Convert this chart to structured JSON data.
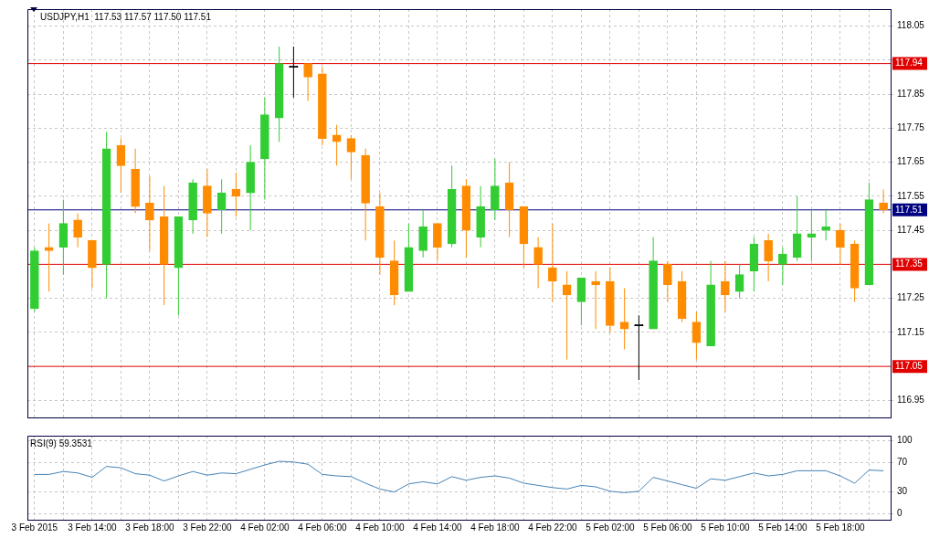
{
  "chart_data": [
    {
      "type": "candlestick",
      "title": "USDJPY,H1  117.53 117.57 117.50 117.51",
      "categories": [
        "3 Feb 2015",
        null,
        null,
        null,
        "3 Feb 14:00",
        null,
        null,
        null,
        "3 Feb 18:00",
        null,
        null,
        null,
        "3 Feb 22:00",
        null,
        null,
        null,
        "4 Feb 02:00",
        null,
        null,
        null,
        "4 Feb 06:00",
        null,
        null,
        null,
        "4 Feb 10:00",
        null,
        null,
        null,
        "4 Feb 14:00",
        null,
        null,
        null,
        "4 Feb 18:00",
        null,
        null,
        null,
        "4 Feb 22:00",
        null,
        null,
        null,
        "5 Feb 02:00",
        null,
        null,
        null,
        "5 Feb 06:00",
        null,
        null,
        null,
        "5 Feb 10:00",
        null,
        null,
        null,
        "5 Feb 14:00",
        null,
        null,
        null,
        "5 Feb 18:00",
        null,
        null,
        null
      ],
      "ohlc": [
        [
          117.22,
          117.4,
          117.21,
          117.39
        ],
        [
          117.4,
          117.47,
          117.27,
          117.39
        ],
        [
          117.4,
          117.54,
          117.32,
          117.47
        ],
        [
          117.48,
          117.5,
          117.4,
          117.43
        ],
        [
          117.42,
          117.42,
          117.28,
          117.34
        ],
        [
          117.35,
          117.74,
          117.25,
          117.69
        ],
        [
          117.7,
          117.72,
          117.56,
          117.64
        ],
        [
          117.63,
          117.69,
          117.5,
          117.52
        ],
        [
          117.53,
          117.61,
          117.39,
          117.48
        ],
        [
          117.49,
          117.58,
          117.23,
          117.35
        ],
        [
          117.34,
          117.49,
          117.2,
          117.49
        ],
        [
          117.48,
          117.6,
          117.44,
          117.59
        ],
        [
          117.58,
          117.63,
          117.43,
          117.5
        ],
        [
          117.51,
          117.6,
          117.44,
          117.56
        ],
        [
          117.57,
          117.62,
          117.49,
          117.55
        ],
        [
          117.56,
          117.7,
          117.45,
          117.65
        ],
        [
          117.66,
          117.84,
          117.54,
          117.79
        ],
        [
          117.78,
          117.99,
          117.71,
          117.94
        ],
        [
          117.93,
          117.99,
          117.84,
          117.93
        ],
        [
          117.94,
          117.94,
          117.83,
          117.9
        ],
        [
          117.91,
          117.93,
          117.7,
          117.72
        ],
        [
          117.73,
          117.76,
          117.64,
          117.71
        ],
        [
          117.72,
          117.73,
          117.6,
          117.68
        ],
        [
          117.67,
          117.69,
          117.42,
          117.53
        ],
        [
          117.52,
          117.56,
          117.32,
          117.37
        ],
        [
          117.36,
          117.42,
          117.23,
          117.26
        ],
        [
          117.27,
          117.47,
          117.27,
          117.4
        ],
        [
          117.39,
          117.51,
          117.37,
          117.46
        ],
        [
          117.47,
          117.47,
          117.36,
          117.4
        ],
        [
          117.41,
          117.64,
          117.4,
          117.57
        ],
        [
          117.58,
          117.6,
          117.37,
          117.45
        ],
        [
          117.43,
          117.58,
          117.4,
          117.52
        ],
        [
          117.51,
          117.66,
          117.48,
          117.58
        ],
        [
          117.59,
          117.65,
          117.43,
          117.51
        ],
        [
          117.52,
          117.52,
          117.34,
          117.41
        ],
        [
          117.4,
          117.43,
          117.28,
          117.35
        ],
        [
          117.34,
          117.47,
          117.24,
          117.3
        ],
        [
          117.29,
          117.33,
          117.07,
          117.26
        ],
        [
          117.24,
          117.31,
          117.17,
          117.31
        ],
        [
          117.3,
          117.33,
          117.16,
          117.29
        ],
        [
          117.3,
          117.34,
          117.15,
          117.17
        ],
        [
          117.18,
          117.28,
          117.1,
          117.16
        ],
        [
          117.17,
          117.2,
          117.01,
          117.17
        ],
        [
          117.16,
          117.43,
          117.16,
          117.36
        ],
        [
          117.35,
          117.36,
          117.24,
          117.29
        ],
        [
          117.3,
          117.33,
          117.18,
          117.19
        ],
        [
          117.18,
          117.21,
          117.07,
          117.12
        ],
        [
          117.11,
          117.36,
          117.11,
          117.29
        ],
        [
          117.3,
          117.36,
          117.21,
          117.26
        ],
        [
          117.27,
          117.35,
          117.25,
          117.32
        ],
        [
          117.33,
          117.43,
          117.27,
          117.41
        ],
        [
          117.42,
          117.44,
          117.3,
          117.36
        ],
        [
          117.35,
          117.4,
          117.29,
          117.38
        ],
        [
          117.37,
          117.55,
          117.36,
          117.44
        ],
        [
          117.43,
          117.51,
          117.36,
          117.44
        ],
        [
          117.45,
          117.51,
          117.42,
          117.46
        ],
        [
          117.45,
          117.47,
          117.35,
          117.4
        ],
        [
          117.41,
          117.42,
          117.24,
          117.28
        ],
        [
          117.29,
          117.59,
          117.29,
          117.54
        ],
        [
          117.53,
          117.57,
          117.5,
          117.51
        ]
      ],
      "colors": [
        "#32cd32",
        "#ff8c00",
        "#32cd32",
        "#ff8c00",
        "#ff8c00",
        "#32cd32",
        "#ff8c00",
        "#ff8c00",
        "#ff8c00",
        "#ff8c00",
        "#32cd32",
        "#32cd32",
        "#ff8c00",
        "#32cd32",
        "#ff8c00",
        "#32cd32",
        "#32cd32",
        "#32cd32",
        "#000000",
        "#ff8c00",
        "#ff8c00",
        "#ff8c00",
        "#ff8c00",
        "#ff8c00",
        "#ff8c00",
        "#ff8c00",
        "#32cd32",
        "#32cd32",
        "#ff8c00",
        "#32cd32",
        "#ff8c00",
        "#32cd32",
        "#32cd32",
        "#ff8c00",
        "#ff8c00",
        "#ff8c00",
        "#ff8c00",
        "#ff8c00",
        "#32cd32",
        "#ff8c00",
        "#ff8c00",
        "#ff8c00",
        "#000000",
        "#32cd32",
        "#ff8c00",
        "#ff8c00",
        "#ff8c00",
        "#32cd32",
        "#ff8c00",
        "#32cd32",
        "#32cd32",
        "#ff8c00",
        "#32cd32",
        "#32cd32",
        "#32cd32",
        "#32cd32",
        "#ff8c00",
        "#ff8c00",
        "#32cd32",
        "#ff8c00"
      ],
      "ylim": [
        116.9,
        118.1
      ],
      "yticks": [
        116.95,
        117.15,
        117.25,
        117.45,
        117.55,
        117.65,
        117.75,
        117.85,
        {
          "value": 117.95,
          "label": null
        },
        118.05
      ],
      "ref_lines": [
        {
          "axis": "y",
          "value": 117.94,
          "label": "117.94",
          "color": "#e00000"
        },
        {
          "axis": "y",
          "value": 117.35,
          "label": "117.35",
          "color": "#e00000"
        },
        {
          "axis": "y",
          "value": 117.05,
          "label": "117.05",
          "color": "#e00000"
        },
        {
          "axis": "y",
          "value": 117.51,
          "label": "117.51",
          "color": "#000080"
        }
      ],
      "grid": true,
      "tick_labels": "y"
    },
    {
      "type": "line",
      "title": "RSI(9) 59.3531",
      "series": [
        {
          "color": "#4682b4",
          "values": [
            54,
            54,
            58,
            56,
            50,
            65,
            63,
            55,
            53,
            45,
            52,
            58,
            53,
            56,
            55,
            61,
            67,
            72,
            71,
            68,
            54,
            52,
            51,
            42,
            34,
            30,
            41,
            44,
            41,
            51,
            46,
            50,
            52,
            49,
            42,
            39,
            36,
            34,
            39,
            37,
            31,
            29,
            31,
            50,
            45,
            40,
            35,
            48,
            46,
            51,
            56,
            52,
            54,
            59,
            59,
            59,
            52,
            42,
            60,
            59
          ]
        }
      ],
      "ylim": [
        -8,
        107
      ],
      "yticks": [
        0,
        30,
        70,
        100
      ],
      "grid": true
    }
  ]
}
